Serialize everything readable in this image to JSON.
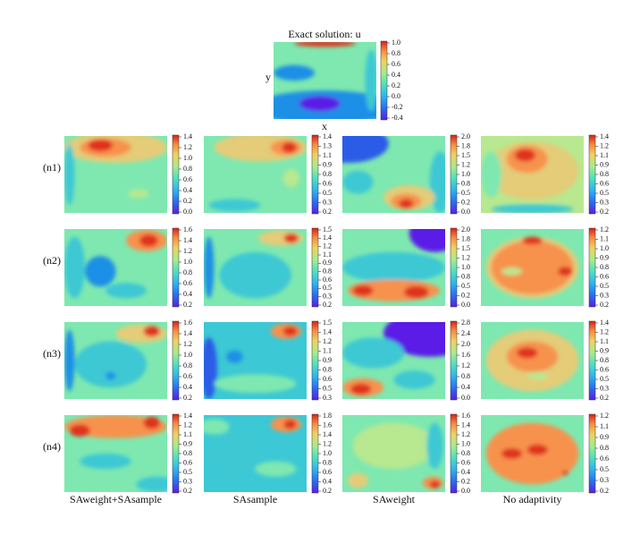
{
  "top": {
    "title": "Exact solution: u",
    "xlabel": "x",
    "ylabel": "y",
    "colorbar_ticks": [
      "1.0",
      "0.8",
      "0.6",
      "0.4",
      "0.2",
      "0.0",
      "-0.2",
      "-0.4"
    ]
  },
  "columns": [
    "SAweight+SAsample",
    "SAsample",
    "SAweight",
    "No adaptivity"
  ],
  "rows": [
    "(n1)",
    "(n2)",
    "(n3)",
    "(n4)"
  ],
  "panels": [
    [
      {
        "colorbar_ticks": [
          "1.4",
          "1.2",
          "1.0",
          "0.8",
          "0.6",
          "0.4",
          "0.2",
          "0.0"
        ]
      },
      {
        "colorbar_ticks": [
          "1.4",
          "1.3",
          "1.1",
          "0.9",
          "0.8",
          "0.6",
          "0.5",
          "0.3",
          "0.2"
        ]
      },
      {
        "colorbar_ticks": [
          "2.0",
          "1.8",
          "1.5",
          "1.2",
          "1.0",
          "0.8",
          "0.5",
          "0.2",
          "0.0"
        ]
      },
      {
        "colorbar_ticks": [
          "1.4",
          "1.2",
          "1.1",
          "0.9",
          "0.8",
          "0.6",
          "0.5",
          "0.3",
          "0.2"
        ]
      }
    ],
    [
      {
        "colorbar_ticks": [
          "1.6",
          "1.4",
          "1.2",
          "1.0",
          "0.8",
          "0.6",
          "0.4",
          "0.2"
        ]
      },
      {
        "colorbar_ticks": [
          "1.5",
          "1.4",
          "1.2",
          "1.1",
          "0.9",
          "0.8",
          "0.6",
          "0.5",
          "0.3",
          "0.2"
        ]
      },
      {
        "colorbar_ticks": [
          "2.0",
          "1.8",
          "1.5",
          "1.2",
          "1.0",
          "0.8",
          "0.5",
          "0.2",
          "0.0"
        ]
      },
      {
        "colorbar_ticks": [
          "1.2",
          "1.1",
          "1.0",
          "0.9",
          "0.8",
          "0.6",
          "0.5",
          "0.3",
          "0.2"
        ]
      }
    ],
    [
      {
        "colorbar_ticks": [
          "1.6",
          "1.4",
          "1.2",
          "1.0",
          "0.8",
          "0.6",
          "0.4",
          "0.2"
        ]
      },
      {
        "colorbar_ticks": [
          "1.5",
          "1.4",
          "1.2",
          "1.1",
          "0.9",
          "0.8",
          "0.6",
          "0.5",
          "0.3"
        ]
      },
      {
        "colorbar_ticks": [
          "2.8",
          "2.4",
          "2.0",
          "1.6",
          "1.2",
          "0.8",
          "0.4",
          "0.0"
        ]
      },
      {
        "colorbar_ticks": [
          "1.4",
          "1.2",
          "1.1",
          "0.9",
          "0.8",
          "0.6",
          "0.5",
          "0.3",
          "0.2"
        ]
      }
    ],
    [
      {
        "colorbar_ticks": [
          "1.4",
          "1.2",
          "1.1",
          "0.9",
          "0.8",
          "0.6",
          "0.5",
          "0.3",
          "0.2"
        ]
      },
      {
        "colorbar_ticks": [
          "1.8",
          "1.6",
          "1.4",
          "1.2",
          "1.0",
          "0.8",
          "0.6",
          "0.4",
          "0.2"
        ]
      },
      {
        "colorbar_ticks": [
          "1.6",
          "1.4",
          "1.2",
          "1.0",
          "0.8",
          "0.6",
          "0.4",
          "0.2",
          "0.0"
        ]
      },
      {
        "colorbar_ticks": [
          "1.2",
          "1.1",
          "0.9",
          "0.8",
          "0.6",
          "0.5",
          "0.3",
          "0.2"
        ]
      }
    ]
  ]
}
